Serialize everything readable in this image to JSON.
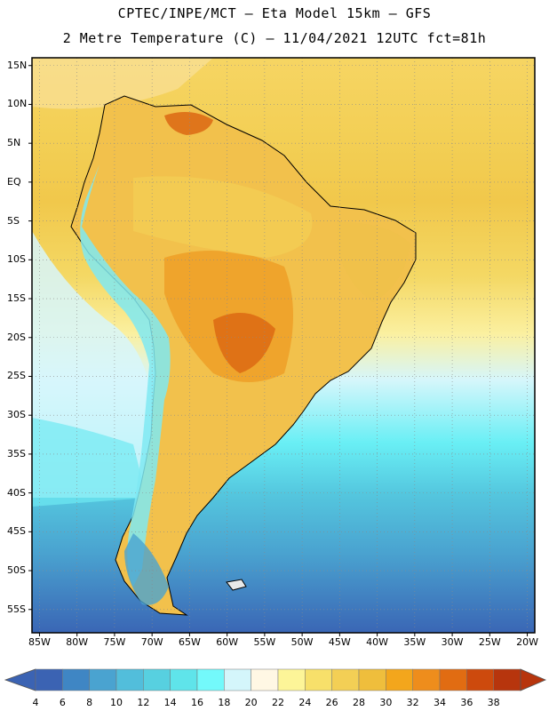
{
  "header": {
    "title": "CPTEC/INPE/MCT –  Eta Model 15km – GFS",
    "subtitle": "2 Metre Temperature (C) – 11/04/2021 12UTC fct=81h"
  },
  "map": {
    "lat_labels": [
      "15N",
      "10N",
      "5N",
      "EQ",
      "5S",
      "10S",
      "15S",
      "20S",
      "25S",
      "30S",
      "35S",
      "40S",
      "45S",
      "50S",
      "55S"
    ],
    "lon_labels": [
      "85W",
      "80W",
      "75W",
      "70W",
      "65W",
      "60W",
      "55W",
      "50W",
      "45W",
      "40W",
      "35W",
      "30W",
      "25W",
      "20W"
    ],
    "lat_range": [
      -58,
      16
    ],
    "lon_range": [
      -86,
      -19
    ]
  },
  "colorbar": {
    "labels": [
      "4",
      "6",
      "8",
      "10",
      "12",
      "14",
      "16",
      "18",
      "20",
      "22",
      "24",
      "26",
      "28",
      "30",
      "32",
      "34",
      "36",
      "38"
    ],
    "colors": [
      "#3b63b3",
      "#3f86c4",
      "#4aa3d0",
      "#52bedb",
      "#57d0e0",
      "#5fe4ea",
      "#73f9fb",
      "#d4f6fb",
      "#fff7e4",
      "#fdf598",
      "#f7e06a",
      "#f3cf55",
      "#efbe3c",
      "#f3a61c",
      "#ee8d1c",
      "#e16c12",
      "#cd4a0d",
      "#b7350d"
    ]
  }
}
